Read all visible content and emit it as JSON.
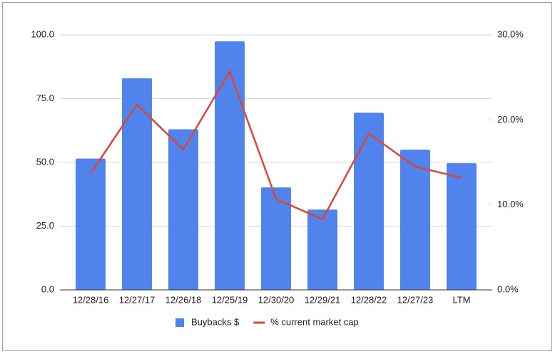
{
  "chart_data": {
    "type": "bar_line",
    "categories": [
      "12/28/16",
      "12/27/17",
      "12/26/18",
      "12/25/19",
      "12/30/20",
      "12/29/21",
      "12/28/22",
      "12/27/23",
      "LTM"
    ],
    "series": [
      {
        "name": "Buybacks $",
        "color": "#5084ec",
        "type": "bar",
        "values": [
          51.5,
          83,
          63,
          97.5,
          40.2,
          31.5,
          69.5,
          55,
          49.7
        ]
      },
      {
        "name": "% current market cap",
        "color": "#d9473b",
        "type": "line",
        "axis": "y2",
        "values": [
          13.7,
          21.8,
          16.5,
          25.7,
          10.7,
          8.3,
          18.4,
          14.5,
          13.2
        ]
      }
    ],
    "ylim": [
      0,
      100
    ],
    "yticks": [
      {
        "value": 0,
        "label": "0.0"
      },
      {
        "value": 25,
        "label": "25.0"
      },
      {
        "value": 50,
        "label": "50.0"
      },
      {
        "value": 75,
        "label": "75.0"
      },
      {
        "value": 100,
        "label": "100.0"
      }
    ],
    "y2lim": [
      0,
      30
    ],
    "y2ticks": [
      {
        "value": 0,
        "label": "0.0%"
      },
      {
        "value": 10,
        "label": "10.0%"
      },
      {
        "value": 20,
        "label": "20.0%"
      },
      {
        "value": 30,
        "label": "30.0%"
      }
    ],
    "grid": true,
    "legend": "bottom"
  }
}
